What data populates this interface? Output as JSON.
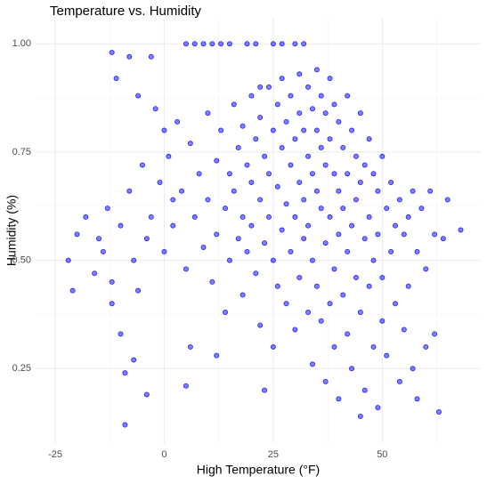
{
  "chart_data": {
    "type": "scatter",
    "title": "Temperature vs. Humidity",
    "x_label": "High Temperature (°F)",
    "y_label": "Humidity (%)",
    "xlim": [
      -29.5,
      72.6
    ],
    "ylim": [
      0.078,
      1.06
    ],
    "xticks": [
      -25,
      0,
      25,
      50
    ],
    "yticks": [
      {
        "value": 0.25,
        "label": "0.25"
      },
      {
        "value": 0.5,
        "label": "0.50"
      },
      {
        "value": 0.75,
        "label": "0.75"
      },
      {
        "value": 1,
        "label": "1.00"
      }
    ],
    "x_minor_grid": [
      -12.5,
      12.5,
      37.5,
      62.5
    ],
    "y_minor_grid": [
      0.375,
      0.625,
      0.875
    ],
    "grid": true,
    "x": [
      -22,
      -21,
      -20,
      -18,
      -16,
      -14,
      -12,
      -11,
      -10,
      -9,
      -9,
      -8,
      -7,
      -6,
      -4,
      -3,
      -2,
      0,
      2,
      5,
      5,
      7,
      9,
      11,
      13,
      15,
      19,
      21,
      25,
      27,
      30,
      32,
      -15,
      -13,
      -12,
      -10,
      -8,
      -7,
      -5,
      -4,
      -3,
      -1,
      0,
      1,
      2,
      3,
      4,
      5,
      6,
      7,
      8,
      9,
      10,
      10,
      11,
      12,
      12,
      13,
      14,
      14,
      15,
      15,
      16,
      16,
      17,
      17,
      18,
      18,
      18,
      19,
      19,
      20,
      20,
      20,
      21,
      21,
      22,
      22,
      22,
      23,
      23,
      24,
      24,
      24,
      25,
      25,
      25,
      26,
      26,
      26,
      27,
      27,
      27,
      28,
      28,
      28,
      29,
      29,
      29,
      30,
      30,
      30,
      31,
      31,
      31,
      31,
      32,
      32,
      32,
      33,
      33,
      33,
      33,
      34,
      34,
      34,
      34,
      35,
      35,
      35,
      35,
      36,
      36,
      36,
      36,
      37,
      37,
      37,
      37,
      38,
      38,
      38,
      38,
      39,
      39,
      39,
      39,
      40,
      40,
      40,
      40,
      41,
      41,
      41,
      42,
      42,
      42,
      42,
      43,
      43,
      43,
      44,
      44,
      44,
      45,
      45,
      45,
      46,
      46,
      46,
      47,
      47,
      47,
      48,
      48,
      48,
      49,
      49,
      49,
      50,
      50,
      50,
      51,
      51,
      52,
      52,
      53,
      53,
      54,
      54,
      55,
      55,
      56,
      56,
      57,
      57,
      58,
      58,
      59,
      60,
      60,
      61,
      62,
      62,
      63,
      64,
      65,
      68,
      -12,
      -6,
      6,
      12,
      22,
      23,
      45
    ],
    "series": [
      {
        "color": "#0000ff",
        "values": [
          0.5,
          0.43,
          0.56,
          0.6,
          0.47,
          0.52,
          0.98,
          0.92,
          0.33,
          0.12,
          0.24,
          0.97,
          0.27,
          0.88,
          0.19,
          0.97,
          0.85,
          0.8,
          0.64,
          0.21,
          1,
          1,
          1,
          1,
          1,
          1,
          1,
          1,
          1,
          1,
          1,
          1,
          0.55,
          0.62,
          0.45,
          0.58,
          0.66,
          0.5,
          0.72,
          0.55,
          0.6,
          0.68,
          0.52,
          0.74,
          0.58,
          0.82,
          0.66,
          0.48,
          0.77,
          0.6,
          0.7,
          0.53,
          0.84,
          0.64,
          0.45,
          0.73,
          0.56,
          0.8,
          0.62,
          0.38,
          0.7,
          0.5,
          0.86,
          0.66,
          0.76,
          0.55,
          0.81,
          0.6,
          0.42,
          0.72,
          0.52,
          0.88,
          0.68,
          0.58,
          0.78,
          0.47,
          0.83,
          0.64,
          0.35,
          0.74,
          0.54,
          0.9,
          0.7,
          0.6,
          0.8,
          0.5,
          0.3,
          0.86,
          0.67,
          0.44,
          0.76,
          0.57,
          0.92,
          0.82,
          0.63,
          0.4,
          0.88,
          0.72,
          0.52,
          0.78,
          0.6,
          0.34,
          0.93,
          0.84,
          0.68,
          0.46,
          0.8,
          0.64,
          0.55,
          0.9,
          0.74,
          0.58,
          0.38,
          0.85,
          0.7,
          0.5,
          0.26,
          0.94,
          0.8,
          0.66,
          0.44,
          0.88,
          0.76,
          0.62,
          0.36,
          0.84,
          0.72,
          0.54,
          0.22,
          0.92,
          0.78,
          0.6,
          0.4,
          0.86,
          0.7,
          0.48,
          0.3,
          0.82,
          0.66,
          0.56,
          0.18,
          0.76,
          0.62,
          0.42,
          0.88,
          0.7,
          0.52,
          0.33,
          0.8,
          0.58,
          0.25,
          0.74,
          0.64,
          0.46,
          0.84,
          0.68,
          0.38,
          0.72,
          0.55,
          0.2,
          0.78,
          0.6,
          0.44,
          0.7,
          0.5,
          0.3,
          0.66,
          0.56,
          0.16,
          0.74,
          0.46,
          0.36,
          0.62,
          0.28,
          0.68,
          0.52,
          0.58,
          0.4,
          0.64,
          0.22,
          0.56,
          0.34,
          0.6,
          0.44,
          0.66,
          0.25,
          0.52,
          0.18,
          0.62,
          0.48,
          0.3,
          0.66,
          0.56,
          0.33,
          0.15,
          0.55,
          0.64,
          0.57,
          0.4,
          0.43,
          0.3,
          0.28,
          0.9,
          0.2,
          0.14
        ]
      }
    ]
  }
}
